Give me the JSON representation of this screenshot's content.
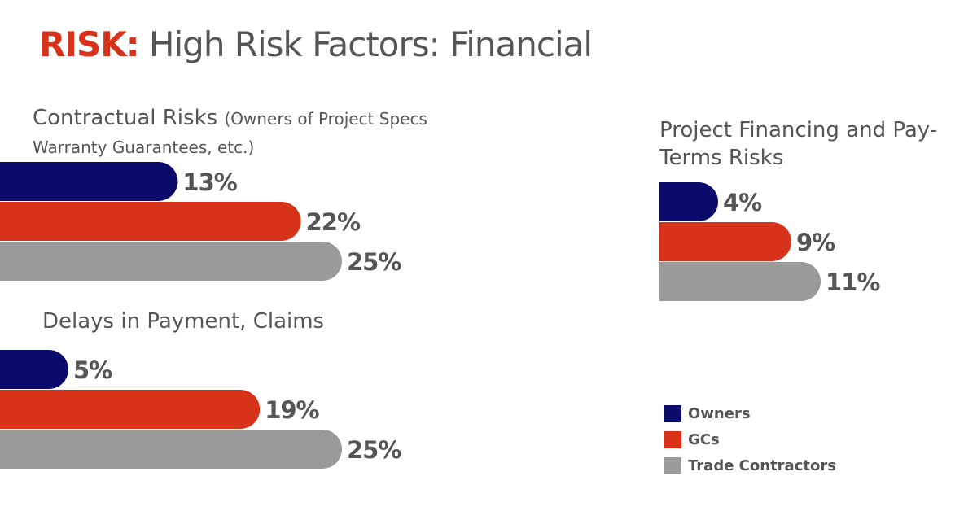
{
  "header": {
    "label": "RISK:",
    "title": "High Risk Factors: Financial"
  },
  "series": [
    {
      "name": "Owners",
      "color": "#0b0b6b"
    },
    {
      "name": "GCs",
      "color": "#d7321a"
    },
    {
      "name": "Trade Contractors",
      "color": "#9a9a9a"
    }
  ],
  "chart_data": [
    {
      "type": "bar",
      "title": "Contractual Risks",
      "subtitle": "(Owners of Project Specs Warranty Guarantees, etc.)",
      "values": [
        13,
        22,
        25
      ],
      "value_labels": [
        "13%",
        "22%",
        "25%"
      ]
    },
    {
      "type": "bar",
      "title": "Delays in Payment, Claims",
      "values": [
        5,
        19,
        25
      ],
      "value_labels": [
        "5%",
        "19%",
        "25%"
      ]
    },
    {
      "type": "bar",
      "title": "Project Financing and Pay-Terms Risks",
      "values": [
        4,
        9,
        11
      ],
      "value_labels": [
        "4%",
        "9%",
        "11%"
      ]
    }
  ]
}
